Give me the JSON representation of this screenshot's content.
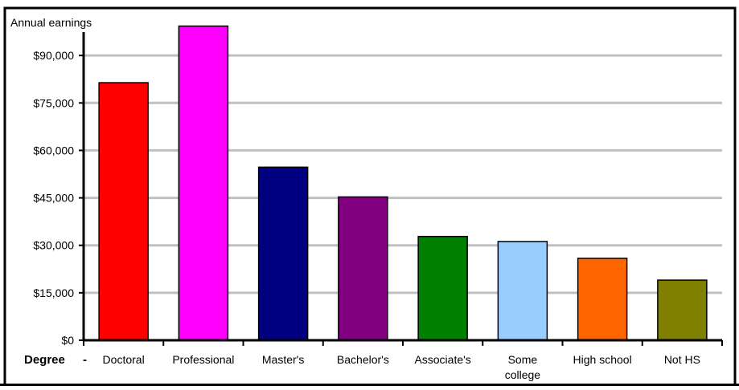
{
  "chart_data": {
    "type": "bar",
    "ylabel": "Annual earnings",
    "xlabel": "Degree",
    "xlabel_suffix": "-",
    "categories": [
      "Doctoral",
      "Professional",
      "Master's",
      "Bachelor's",
      "Associate's",
      "Some college",
      "High school",
      "Not HS"
    ],
    "category_lines": [
      [
        "Doctoral"
      ],
      [
        "Professional"
      ],
      [
        "Master's"
      ],
      [
        "Bachelor's"
      ],
      [
        "Associate's"
      ],
      [
        "Some",
        "college"
      ],
      [
        "High school"
      ],
      [
        "Not HS"
      ]
    ],
    "values": [
      81400,
      99300,
      54700,
      45300,
      32800,
      31200,
      25900,
      19000
    ],
    "colors": [
      "#ff0000",
      "#ff00ff",
      "#000080",
      "#800080",
      "#008000",
      "#99ccff",
      "#ff6600",
      "#808000"
    ],
    "ylim": [
      0,
      105000
    ],
    "yticks": [
      0,
      15000,
      30000,
      45000,
      60000,
      75000,
      90000
    ],
    "ytick_labels": [
      "$0",
      "$15,000",
      "$30,000",
      "$45,000",
      "$60,000",
      "$75,000",
      "$90,000"
    ],
    "grid": true,
    "legend": "none"
  }
}
